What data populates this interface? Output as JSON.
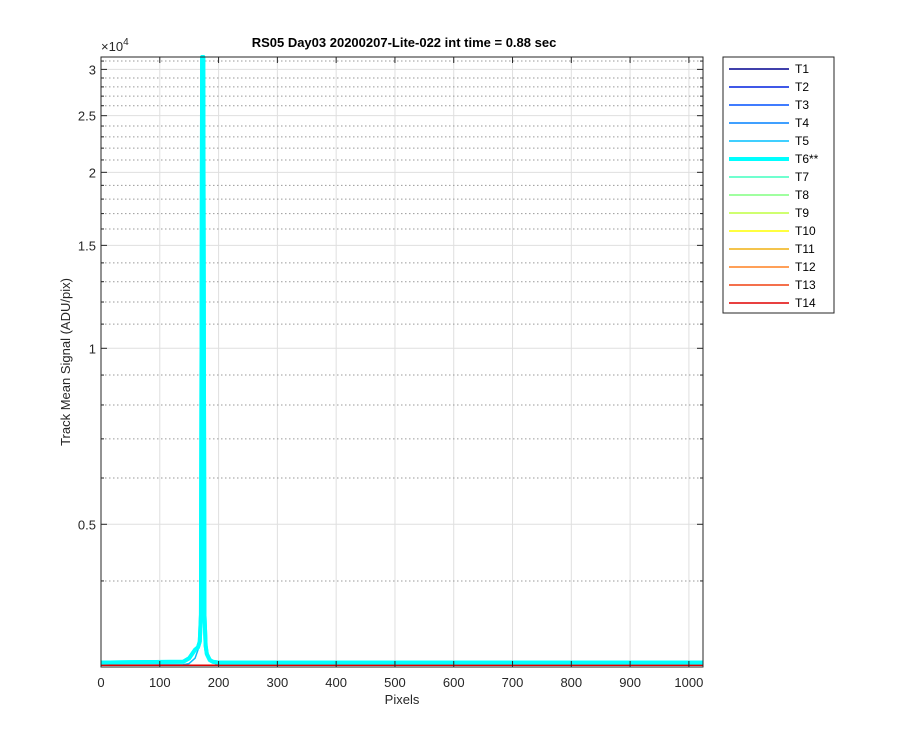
{
  "chart_data": {
    "type": "line",
    "title": "RS05 Day03 20200207-Lite-022 int time = 0.88 sec",
    "xlabel": "Pixels",
    "ylabel": "Track Mean Signal (ADU/pix)",
    "y_exponent_label": "×10",
    "y_exponent_power": "4",
    "y_scale": "log",
    "xlim": [
      0,
      1024
    ],
    "ylim": [
      2850,
      31500
    ],
    "x_ticks": [
      0,
      100,
      200,
      300,
      400,
      500,
      600,
      700,
      800,
      900,
      1000
    ],
    "x_tick_labels": [
      "0",
      "100",
      "200",
      "300",
      "400",
      "500",
      "600",
      "700",
      "800",
      "900",
      "1000"
    ],
    "y_ticks": [
      5000,
      10000,
      15000,
      20000,
      25000,
      30000
    ],
    "y_tick_labels": [
      "0.5",
      "1",
      "1.5",
      "2",
      "2.5",
      "3"
    ],
    "y_minor_ticks": [
      4000,
      6000,
      7000,
      8000,
      9000,
      11000,
      12000,
      13000,
      14000,
      16000,
      17000,
      18000,
      19000,
      21000,
      22000,
      23000,
      24000,
      26000,
      27000,
      28000,
      29000,
      31000
    ],
    "grid": true,
    "legend_position": "outside-right",
    "series": [
      {
        "name": "T1",
        "color": "#00008f",
        "width": 1.5,
        "x": [
          0,
          1024
        ],
        "y": [
          2870,
          2870
        ]
      },
      {
        "name": "T2",
        "color": "#0020df",
        "width": 1.5,
        "x": [
          0,
          1024
        ],
        "y": [
          2870,
          2870
        ]
      },
      {
        "name": "T3",
        "color": "#0050ff",
        "width": 1.5,
        "x": [
          0,
          1024
        ],
        "y": [
          2870,
          2870
        ]
      },
      {
        "name": "T4",
        "color": "#0080ff",
        "width": 1.5,
        "x": [
          0,
          1024
        ],
        "y": [
          2870,
          2870
        ]
      },
      {
        "name": "T5",
        "color": "#00bfff",
        "width": 1.5,
        "x": [
          0,
          140,
          150,
          160,
          165,
          170,
          173,
          176,
          180,
          190,
          200,
          1024
        ],
        "y": [
          2870,
          2875,
          2890,
          2950,
          3050,
          3400,
          3900,
          3400,
          3000,
          2900,
          2875,
          2870
        ]
      },
      {
        "name": "T6**",
        "color": "#00ffff",
        "width": 4,
        "x": [
          0,
          140,
          150,
          155,
          160,
          165,
          168,
          170,
          172,
          174,
          176,
          178,
          180,
          185,
          190,
          200,
          1024
        ],
        "y": [
          2900,
          2910,
          2950,
          3000,
          3050,
          3080,
          3150,
          3500,
          31500,
          31500,
          3500,
          3100,
          3000,
          2930,
          2910,
          2900,
          2900
        ]
      },
      {
        "name": "T7",
        "color": "#40ffbf",
        "width": 1.5,
        "x": [
          0,
          1024
        ],
        "y": [
          2870,
          2870
        ]
      },
      {
        "name": "T8",
        "color": "#80ff80",
        "width": 1.5,
        "x": [
          0,
          1024
        ],
        "y": [
          2870,
          2870
        ]
      },
      {
        "name": "T9",
        "color": "#bfff40",
        "width": 1.5,
        "x": [
          0,
          1024
        ],
        "y": [
          2870,
          2870
        ]
      },
      {
        "name": "T10",
        "color": "#ffff00",
        "width": 1.5,
        "x": [
          0,
          1024
        ],
        "y": [
          2870,
          2870
        ]
      },
      {
        "name": "T11",
        "color": "#f0b010",
        "width": 1.5,
        "x": [
          0,
          1024
        ],
        "y": [
          2870,
          2870
        ]
      },
      {
        "name": "T12",
        "color": "#ff8020",
        "width": 1.5,
        "x": [
          0,
          1024
        ],
        "y": [
          2870,
          2870
        ]
      },
      {
        "name": "T13",
        "color": "#f04010",
        "width": 1.5,
        "x": [
          0,
          1024
        ],
        "y": [
          2870,
          2870
        ]
      },
      {
        "name": "T14",
        "color": "#e00000",
        "width": 1.5,
        "x": [
          0,
          1024
        ],
        "y": [
          2870,
          2870
        ]
      }
    ]
  }
}
